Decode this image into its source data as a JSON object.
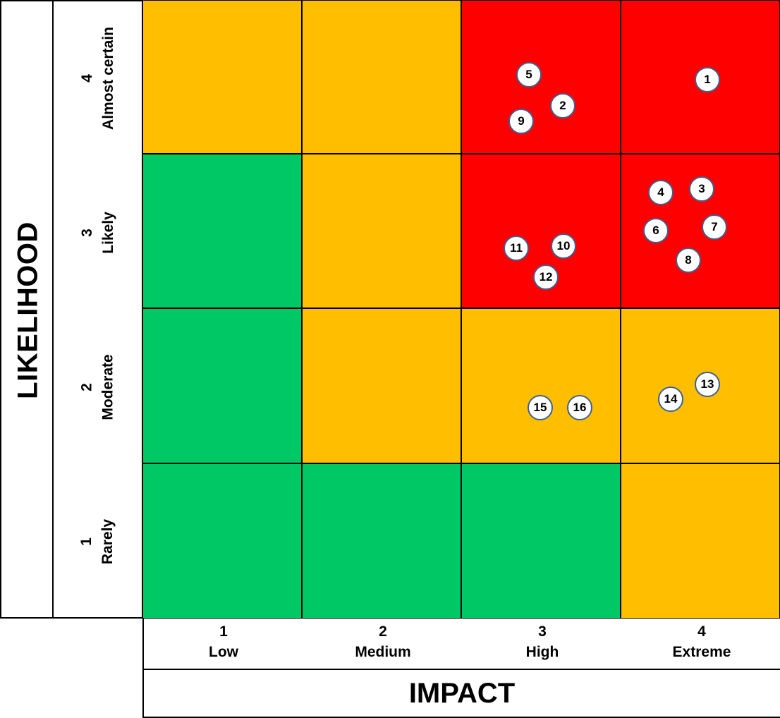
{
  "axes": {
    "likelihood_title": "LIKELIHOOD",
    "impact_title": "IMPACT",
    "likelihood_levels": [
      {
        "number": "4",
        "label": "Almost certain"
      },
      {
        "number": "3",
        "label": "Likely"
      },
      {
        "number": "2",
        "label": "Moderate"
      },
      {
        "number": "1",
        "label": "Rarely"
      }
    ],
    "impact_levels": [
      {
        "number": "1",
        "label": "Low"
      },
      {
        "number": "2",
        "label": "Medium"
      },
      {
        "number": "3",
        "label": "High"
      },
      {
        "number": "4",
        "label": "Extreme"
      }
    ]
  },
  "colors": {
    "green": "#00c864",
    "amber": "#ffbf00",
    "red": "#ff0000",
    "marker_border": "#3f5f8f"
  },
  "grid": [
    [
      "amber",
      "amber",
      "red",
      "red"
    ],
    [
      "green",
      "amber",
      "red",
      "red"
    ],
    [
      "green",
      "amber",
      "amber",
      "amber"
    ],
    [
      "green",
      "green",
      "green",
      "amber"
    ]
  ],
  "risks": [
    {
      "id": "1",
      "likelihood": 4,
      "impact": 4
    },
    {
      "id": "2",
      "likelihood": 4,
      "impact": 3
    },
    {
      "id": "5",
      "likelihood": 4,
      "impact": 3
    },
    {
      "id": "9",
      "likelihood": 4,
      "impact": 3
    },
    {
      "id": "3",
      "likelihood": 3,
      "impact": 4
    },
    {
      "id": "4",
      "likelihood": 3,
      "impact": 4
    },
    {
      "id": "6",
      "likelihood": 3,
      "impact": 4
    },
    {
      "id": "7",
      "likelihood": 3,
      "impact": 4
    },
    {
      "id": "8",
      "likelihood": 3,
      "impact": 4
    },
    {
      "id": "10",
      "likelihood": 3,
      "impact": 3
    },
    {
      "id": "11",
      "likelihood": 3,
      "impact": 3
    },
    {
      "id": "12",
      "likelihood": 3,
      "impact": 3
    },
    {
      "id": "13",
      "likelihood": 2,
      "impact": 4
    },
    {
      "id": "14",
      "likelihood": 2,
      "impact": 4
    },
    {
      "id": "15",
      "likelihood": 2,
      "impact": 3
    },
    {
      "id": "16",
      "likelihood": 2,
      "impact": 3
    }
  ]
}
